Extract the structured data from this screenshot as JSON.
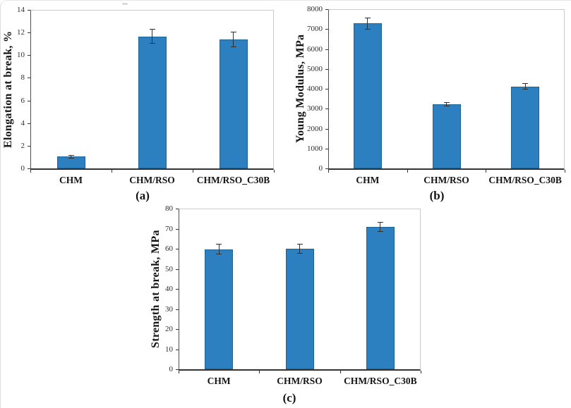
{
  "figure": {
    "description": "Three bar charts comparing mechanical properties of CHM, CHM/RSO and CHM/RSO_C30B samples",
    "panel_labels": [
      "(a)",
      "(b)",
      "(c)"
    ]
  },
  "colors": {
    "bar_fill": "#2c80c0",
    "bar_border": "#1d6398",
    "axis_line": "#333333",
    "frame_line": "#cbcbcb",
    "error_bar": "#2f2f2f",
    "tick_text": "#2e2e2e",
    "label_text": "#141414",
    "background": "#ffffff"
  },
  "chart_data": [
    {
      "panel": "a",
      "panel_label": "(a)",
      "type": "bar",
      "title": "",
      "xlabel": "",
      "ylabel": "Elongation at break, %",
      "categories": [
        "CHM",
        "CHM/RSO",
        "CHM/RSO_C30B"
      ],
      "values": [
        1.05,
        11.65,
        11.4
      ],
      "errors": [
        0.15,
        0.65,
        0.7
      ],
      "ylim": [
        0,
        14
      ],
      "ytick_step": 2,
      "ytick_labels": [
        "0",
        "2",
        "4",
        "6",
        "8",
        "10",
        "12",
        "14"
      ],
      "grid": false,
      "legend": "none"
    },
    {
      "panel": "b",
      "panel_label": "(b)",
      "type": "bar",
      "title": "",
      "xlabel": "",
      "ylabel": "Young Modulus, MPa",
      "categories": [
        "CHM",
        "CHM/RSO",
        "CHM/RSO_C30B"
      ],
      "values": [
        7280,
        3230,
        4120
      ],
      "errors": [
        300,
        110,
        150
      ],
      "ylim": [
        0,
        8000
      ],
      "ytick_step": 1000,
      "ytick_labels": [
        "0",
        "1000",
        "2000",
        "3000",
        "4000",
        "5000",
        "6000",
        "7000",
        "8000"
      ],
      "grid": false,
      "legend": "none"
    },
    {
      "panel": "c",
      "panel_label": "(c)",
      "type": "bar",
      "title": "",
      "xlabel": "",
      "ylabel": "Strength at break, MPa",
      "categories": [
        "CHM",
        "CHM/RSO",
        "CHM/RSO_C30B"
      ],
      "values": [
        59.8,
        60.0,
        70.8
      ],
      "errors": [
        2.5,
        2.5,
        2.5
      ],
      "ylim": [
        0,
        80
      ],
      "ytick_step": 10,
      "ytick_labels": [
        "0",
        "10",
        "20",
        "30",
        "40",
        "50",
        "60",
        "70",
        "80"
      ],
      "grid": false,
      "legend": "none"
    }
  ]
}
